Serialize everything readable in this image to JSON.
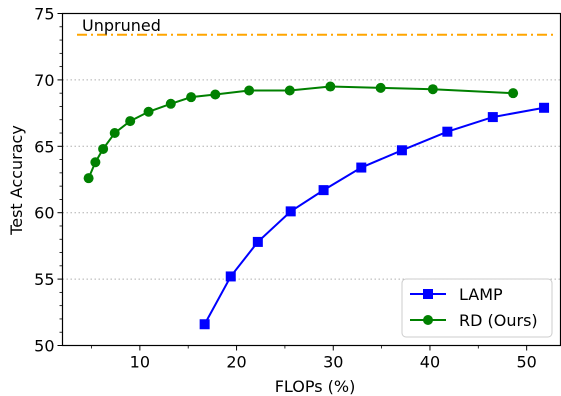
{
  "chart_data": {
    "type": "line",
    "title": "",
    "xlabel": "FLOPs (%)",
    "ylabel": "Test Accuracy",
    "xlim": [
      2,
      53.5
    ],
    "ylim": [
      50,
      75
    ],
    "xticks": [
      10,
      20,
      30,
      40,
      50
    ],
    "yticks": [
      50,
      55,
      60,
      65,
      70,
      75
    ],
    "grid": "horizontal dotted",
    "legend_position": "bottom-right",
    "reference_line": {
      "label": "Unpruned",
      "y": 73.4,
      "color": "#ffa500",
      "style": "dash-dot"
    },
    "series": [
      {
        "name": "LAMP",
        "color": "#0000ff",
        "marker": "square",
        "x": [
          16.7,
          19.4,
          22.2,
          25.6,
          29.0,
          32.9,
          37.1,
          41.8,
          46.5,
          51.8
        ],
        "y": [
          51.6,
          55.2,
          57.8,
          60.1,
          61.7,
          63.4,
          64.7,
          66.1,
          67.2,
          67.9
        ]
      },
      {
        "name": "RD (Ours)",
        "color": "#008000",
        "marker": "circle",
        "x": [
          4.7,
          5.4,
          6.2,
          7.4,
          9.0,
          10.9,
          13.2,
          15.3,
          17.8,
          21.3,
          25.5,
          29.7,
          34.9,
          40.3,
          48.6
        ],
        "y": [
          62.6,
          63.8,
          64.8,
          66.0,
          66.9,
          67.6,
          68.2,
          68.7,
          68.9,
          69.2,
          69.2,
          69.5,
          69.4,
          69.3,
          69.0
        ]
      }
    ]
  }
}
